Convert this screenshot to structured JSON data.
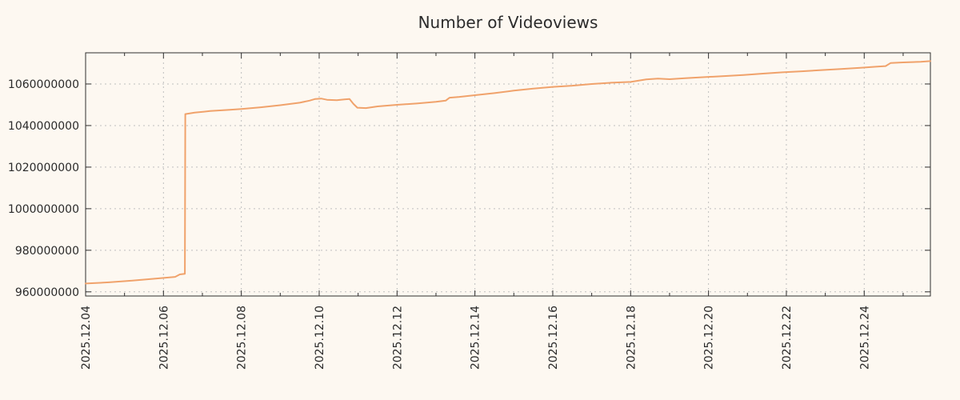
{
  "chart_data": {
    "type": "line",
    "title": "Number of Videoviews",
    "xlabel": "",
    "ylabel": "",
    "grid": true,
    "legend": "none",
    "background_color": "#fdf8f1",
    "line_color": "#f0a26b",
    "axis_color": "#2f2f2f",
    "grid_color": "#bfbfbf",
    "x_unit": "date (days after 2025.12.04)",
    "x_range_days": [
      0,
      21.7
    ],
    "ylim": [
      958000000,
      1075000000
    ],
    "x_ticks": [
      {
        "day": 0,
        "label": "2025.12.04"
      },
      {
        "day": 2,
        "label": "2025.12.06"
      },
      {
        "day": 4,
        "label": "2025.12.08"
      },
      {
        "day": 6,
        "label": "2025.12.10"
      },
      {
        "day": 8,
        "label": "2025.12.12"
      },
      {
        "day": 10,
        "label": "2025.12.14"
      },
      {
        "day": 12,
        "label": "2025.12.16"
      },
      {
        "day": 14,
        "label": "2025.12.18"
      },
      {
        "day": 16,
        "label": "2025.12.20"
      },
      {
        "day": 18,
        "label": "2025.12.22"
      },
      {
        "day": 20,
        "label": "2025.12.24"
      }
    ],
    "x_minor_tick_days": [
      1,
      3,
      5,
      7,
      9,
      11,
      13,
      15,
      17,
      19,
      21
    ],
    "y_ticks": [
      {
        "value": 960000000,
        "label": "960000000"
      },
      {
        "value": 980000000,
        "label": "980000000"
      },
      {
        "value": 1000000000,
        "label": "1000000000"
      },
      {
        "value": 1020000000,
        "label": "1020000000"
      },
      {
        "value": 1040000000,
        "label": "1040000000"
      },
      {
        "value": 1060000000,
        "label": "1060000000"
      }
    ],
    "series": [
      {
        "name": "Number of Videoviews",
        "points": [
          [
            0,
            964000000
          ],
          [
            0.6,
            964600000
          ],
          [
            1.2,
            965400000
          ],
          [
            1.8,
            966400000
          ],
          [
            2.3,
            967200000
          ],
          [
            2.42,
            968400000
          ],
          [
            2.55,
            968700000
          ],
          [
            2.56,
            1045500000
          ],
          [
            2.8,
            1046200000
          ],
          [
            3.2,
            1047000000
          ],
          [
            3.7,
            1047600000
          ],
          [
            4.0,
            1048000000
          ],
          [
            4.5,
            1048800000
          ],
          [
            5.0,
            1049800000
          ],
          [
            5.5,
            1051000000
          ],
          [
            5.75,
            1052000000
          ],
          [
            5.9,
            1052800000
          ],
          [
            6.05,
            1053000000
          ],
          [
            6.2,
            1052400000
          ],
          [
            6.45,
            1052200000
          ],
          [
            6.65,
            1052600000
          ],
          [
            6.78,
            1052800000
          ],
          [
            6.88,
            1050400000
          ],
          [
            6.98,
            1048600000
          ],
          [
            7.2,
            1048400000
          ],
          [
            7.5,
            1049200000
          ],
          [
            8.0,
            1050000000
          ],
          [
            8.5,
            1050600000
          ],
          [
            9.0,
            1051400000
          ],
          [
            9.25,
            1052000000
          ],
          [
            9.35,
            1053400000
          ],
          [
            9.6,
            1053800000
          ],
          [
            10.0,
            1054600000
          ],
          [
            10.5,
            1055600000
          ],
          [
            11.0,
            1056800000
          ],
          [
            11.5,
            1057800000
          ],
          [
            12.0,
            1058600000
          ],
          [
            12.5,
            1059200000
          ],
          [
            13.0,
            1060000000
          ],
          [
            13.5,
            1060600000
          ],
          [
            14.0,
            1061000000
          ],
          [
            14.4,
            1062200000
          ],
          [
            14.7,
            1062600000
          ],
          [
            15.0,
            1062300000
          ],
          [
            15.4,
            1062800000
          ],
          [
            15.9,
            1063300000
          ],
          [
            16.4,
            1063800000
          ],
          [
            16.9,
            1064300000
          ],
          [
            17.4,
            1065000000
          ],
          [
            17.9,
            1065600000
          ],
          [
            18.4,
            1066100000
          ],
          [
            18.9,
            1066700000
          ],
          [
            19.4,
            1067200000
          ],
          [
            19.9,
            1067800000
          ],
          [
            20.3,
            1068300000
          ],
          [
            20.55,
            1068600000
          ],
          [
            20.68,
            1070100000
          ],
          [
            21.0,
            1070400000
          ],
          [
            21.45,
            1070700000
          ],
          [
            21.7,
            1071000000
          ]
        ]
      }
    ]
  }
}
